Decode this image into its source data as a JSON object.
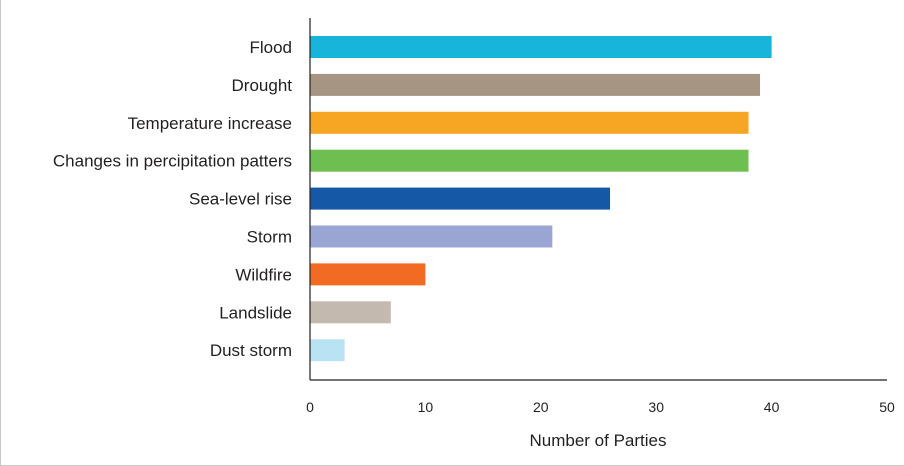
{
  "chart_data": {
    "type": "bar",
    "orientation": "horizontal",
    "title": "",
    "xlabel": "Number of Parties",
    "ylabel": "",
    "xlim": [
      0,
      50
    ],
    "xticks": [
      "0",
      "10",
      "20",
      "30",
      "40",
      "50"
    ],
    "grid": false,
    "legend": "none",
    "categories": [
      "Flood",
      "Drought",
      "Temperature increase",
      "Changes in percipitation patters",
      "Sea-level rise",
      "Storm",
      "Wildfire",
      "Landslide",
      "Dust storm"
    ],
    "values": [
      40,
      39,
      38,
      38,
      26,
      21,
      10,
      7,
      3
    ],
    "colors": [
      "#16b5d9",
      "#a69583",
      "#f6a623",
      "#6dbf4f",
      "#1558a6",
      "#99a6d4",
      "#f26b22",
      "#c3b9ae",
      "#b9e2f2"
    ]
  }
}
